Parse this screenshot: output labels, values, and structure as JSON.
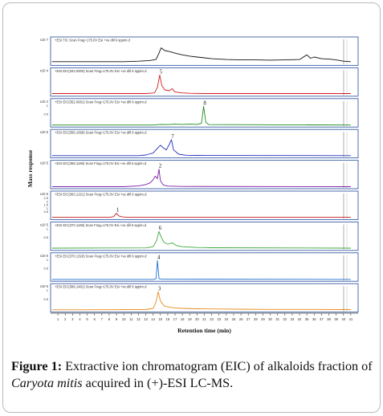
{
  "figure": {
    "caption_label": "Figure 1:",
    "caption_part1": " Extractive ion chromatogram (EIC) of alkaloids fraction of ",
    "caption_species": "Caryota mitis",
    "caption_part2": " acquired in (+)-ESI LC-MS."
  },
  "chart_data": {
    "type": "line",
    "xlabel": "Retention time (min)",
    "ylabel": "Mass response",
    "x_ticks": [
      1,
      2,
      3,
      4,
      5,
      6,
      7,
      8,
      9,
      10,
      11,
      12,
      13,
      14,
      15,
      16,
      17,
      18,
      19,
      20,
      21,
      22,
      23,
      24,
      25,
      26,
      27,
      28,
      29,
      30,
      31,
      32,
      33,
      34,
      35,
      36,
      37,
      38,
      39,
      40,
      41
    ],
    "xlim": [
      0,
      42
    ],
    "panels": [
      {
        "header": "+ESI TIC Scan Frag=175.0V Esi +ve dill 6 sppim.d",
        "exponent": "x10 7",
        "peak_label": "",
        "color": "#111111",
        "y_ticks": [],
        "points": [
          [
            0.2,
            0.1
          ],
          [
            10,
            0.1
          ],
          [
            12,
            0.12
          ],
          [
            13.5,
            0.15
          ],
          [
            14.4,
            0.2
          ],
          [
            14.8,
            0.5
          ],
          [
            15.1,
            0.75
          ],
          [
            15.6,
            0.62
          ],
          [
            16.2,
            0.58
          ],
          [
            17,
            0.5
          ],
          [
            18,
            0.42
          ],
          [
            19,
            0.36
          ],
          [
            20,
            0.32
          ],
          [
            21,
            0.28
          ],
          [
            22,
            0.24
          ],
          [
            24,
            0.2
          ],
          [
            26,
            0.18
          ],
          [
            28,
            0.18
          ],
          [
            30,
            0.17
          ],
          [
            32,
            0.18
          ],
          [
            34,
            0.2
          ],
          [
            35,
            0.42
          ],
          [
            35.5,
            0.26
          ],
          [
            36,
            0.32
          ],
          [
            37,
            0.24
          ],
          [
            38,
            0.22
          ],
          [
            39,
            0.18
          ],
          [
            40,
            0.12
          ],
          [
            41,
            0.1
          ]
        ]
      },
      {
        "header": "+ESI EIC(342.0000) Scan Frag=175.0V Esi +ve dill 6 sppim.d",
        "exponent": "x10 4",
        "peak_label": "5",
        "color": "#d21d1d",
        "y_ticks": [],
        "points": [
          [
            0.2,
            0.05
          ],
          [
            13,
            0.05
          ],
          [
            14.2,
            0.08
          ],
          [
            14.6,
            0.35
          ],
          [
            14.9,
            0.92
          ],
          [
            15.2,
            0.42
          ],
          [
            15.6,
            0.22
          ],
          [
            16.2,
            0.18
          ],
          [
            16.6,
            0.28
          ],
          [
            17,
            0.12
          ],
          [
            18,
            0.08
          ],
          [
            19,
            0.06
          ],
          [
            21,
            0.05
          ],
          [
            41,
            0.05
          ]
        ]
      },
      {
        "header": "+ESI EIC(352.0681) Scan Frag=175.0V Esi +ve dill 6 sppim.d",
        "exponent": "x10 4",
        "peak_label": "8",
        "color": "#1c8c1c",
        "y_ticks": [
          "1",
          "0.5"
        ],
        "points": [
          [
            0.2,
            0.02
          ],
          [
            14,
            0.02
          ],
          [
            15,
            0.05
          ],
          [
            16,
            0.04
          ],
          [
            17,
            0.06
          ],
          [
            18,
            0.05
          ],
          [
            19,
            0.06
          ],
          [
            20,
            0.05
          ],
          [
            20.6,
            0.1
          ],
          [
            20.9,
            0.9
          ],
          [
            21.2,
            0.15
          ],
          [
            21.6,
            0.04
          ],
          [
            41,
            0.02
          ]
        ]
      },
      {
        "header": "+ESI EIC(356.1699) Scan Frag=175.0V Esi +ve dill 6 sppim.d",
        "exponent": "x10 5",
        "peak_label": "7",
        "color": "#1f2fbf",
        "y_ticks": [],
        "points": [
          [
            0.2,
            0.03
          ],
          [
            12,
            0.03
          ],
          [
            13,
            0.06
          ],
          [
            14,
            0.15
          ],
          [
            14.6,
            0.38
          ],
          [
            15,
            0.52
          ],
          [
            15.4,
            0.4
          ],
          [
            15.8,
            0.3
          ],
          [
            16.2,
            0.55
          ],
          [
            16.5,
            0.78
          ],
          [
            16.8,
            0.3
          ],
          [
            17.5,
            0.1
          ],
          [
            18.5,
            0.05
          ],
          [
            20,
            0.04
          ],
          [
            41,
            0.03
          ]
        ]
      },
      {
        "header": "+ESI EIC(358.1168) Scan Frag=175.0V Esi +ve dill 6 sppim.d",
        "exponent": "x10 5",
        "peak_label": "2",
        "color": "#7a1fa8",
        "y_ticks": [],
        "points": [
          [
            0.2,
            0.02
          ],
          [
            10,
            0.02
          ],
          [
            12,
            0.06
          ],
          [
            13,
            0.12
          ],
          [
            13.6,
            0.2
          ],
          [
            14,
            0.35
          ],
          [
            14.3,
            0.52
          ],
          [
            14.6,
            0.4
          ],
          [
            14.8,
            0.85
          ],
          [
            15.0,
            0.3
          ],
          [
            15.4,
            0.1
          ],
          [
            16,
            0.05
          ],
          [
            18,
            0.03
          ],
          [
            41,
            0.02
          ]
        ]
      },
      {
        "header": "+ESI EIC(363.1221) Scan Frag=175.0V Esi +ve dill 6 sppim.d",
        "exponent": "x10 5",
        "peak_label": "1",
        "color": "#c41d1d",
        "y_ticks": [
          "2.5",
          "2",
          "1.5",
          "1",
          "0.5"
        ],
        "points": [
          [
            0.2,
            0.03
          ],
          [
            8,
            0.03
          ],
          [
            8.6,
            0.06
          ],
          [
            9.0,
            0.22
          ],
          [
            9.3,
            0.1
          ],
          [
            9.8,
            0.05
          ],
          [
            10.5,
            0.03
          ],
          [
            41,
            0.03
          ]
        ]
      },
      {
        "header": "+ESI EIC(370.1169) Scan Frag=175.0V Esi +ve dill 6 sppim.d",
        "exponent": "x10 5",
        "peak_label": "6",
        "color": "#3aa83a",
        "y_ticks": [
          "1",
          "0.5"
        ],
        "points": [
          [
            0.2,
            0.03
          ],
          [
            13,
            0.04
          ],
          [
            14,
            0.1
          ],
          [
            14.5,
            0.4
          ],
          [
            14.8,
            0.82
          ],
          [
            15.1,
            0.55
          ],
          [
            15.5,
            0.3
          ],
          [
            16,
            0.22
          ],
          [
            16.6,
            0.28
          ],
          [
            17.2,
            0.15
          ],
          [
            18,
            0.1
          ],
          [
            19,
            0.08
          ],
          [
            20,
            0.06
          ],
          [
            22,
            0.05
          ],
          [
            41,
            0.03
          ]
        ]
      },
      {
        "header": "+ESI EIC(370.1326) Scan Frag=175.0V Esi +ve dill 6 sppim.d",
        "exponent": "x10 6",
        "peak_label": "4",
        "color": "#1f6fd0",
        "y_ticks": [
          "1",
          "0.5"
        ],
        "points": [
          [
            0.2,
            0.01
          ],
          [
            14,
            0.01
          ],
          [
            14.4,
            0.04
          ],
          [
            14.6,
            0.9
          ],
          [
            14.8,
            0.05
          ],
          [
            15.2,
            0.02
          ],
          [
            41,
            0.01
          ]
        ]
      },
      {
        "header": "+ESI EIC(386.1481) Scan Frag=175.0V Esi +ve dill 6 sppim.d",
        "exponent": "x10 5",
        "peak_label": "3",
        "color": "#e88a1a",
        "y_ticks": [
          "1",
          "0.5"
        ],
        "points": [
          [
            0.2,
            0.03
          ],
          [
            13,
            0.04
          ],
          [
            14,
            0.1
          ],
          [
            14.4,
            0.4
          ],
          [
            14.7,
            0.88
          ],
          [
            15.0,
            0.45
          ],
          [
            15.5,
            0.22
          ],
          [
            16.2,
            0.15
          ],
          [
            17,
            0.12
          ],
          [
            18,
            0.1
          ],
          [
            20,
            0.08
          ],
          [
            23,
            0.07
          ],
          [
            26,
            0.06
          ],
          [
            30,
            0.05
          ],
          [
            35,
            0.05
          ],
          [
            41,
            0.04
          ]
        ]
      }
    ]
  }
}
